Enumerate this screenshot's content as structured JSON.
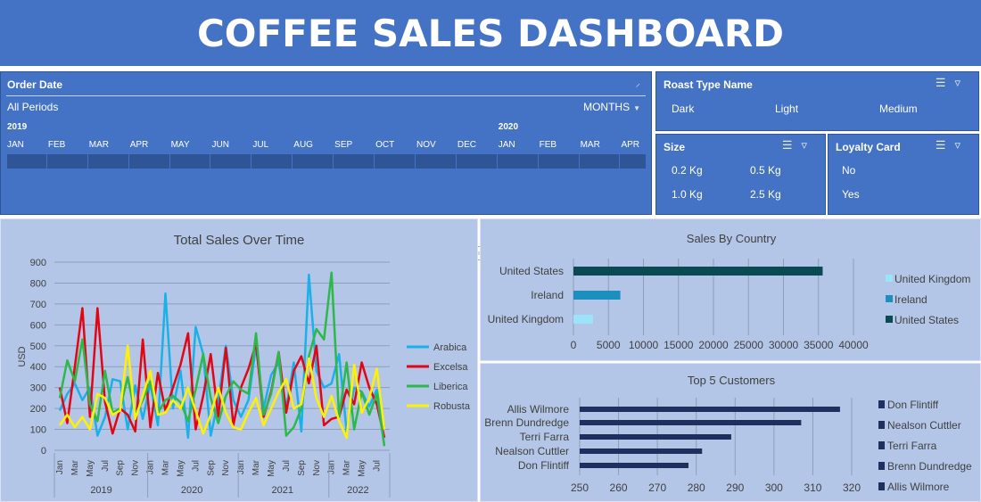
{
  "dashboard": {
    "title": "COFFEE SALES DASHBOARD"
  },
  "colors": {
    "panel": "#4472C4",
    "panel_dark": "#2F5597",
    "chart_bg": "#B4C6E7",
    "arabica": "#1AB0E8",
    "excelsa": "#E30513",
    "liberica": "#2DB84A",
    "robusta": "#FFF200",
    "country_uk": "#9BE3F8",
    "country_ie": "#1D8FBF",
    "country_us": "#0B4A52",
    "customer_bar": "#1F2F5E"
  },
  "timeline": {
    "header": "Order Date",
    "filter_icon": "filter-clear-icon",
    "periods_label": "All Periods",
    "level_label": "MONTHS",
    "years": [
      "2019",
      "2020"
    ],
    "months": [
      "JAN",
      "FEB",
      "MAR",
      "APR",
      "MAY",
      "JUN",
      "JUL",
      "AUG",
      "SEP",
      "OCT",
      "NOV",
      "DEC",
      "JAN",
      "FEB",
      "MAR",
      "APR"
    ]
  },
  "slicers": {
    "roast": {
      "title": "Roast Type Name",
      "items": [
        "Dark",
        "Light",
        "Medium"
      ]
    },
    "size": {
      "title": "Size",
      "items": [
        "0.2 Kg",
        "0.5 Kg",
        "1.0 Kg",
        "2.5 Kg"
      ]
    },
    "loyalty": {
      "title": "Loyalty Card",
      "items": [
        "No",
        "Yes"
      ]
    },
    "icons": [
      "multi-select-icon",
      "clear-filter-icon"
    ]
  },
  "chart_data": [
    {
      "type": "line",
      "title": "Total Sales Over Time",
      "ylabel": "USD",
      "xlabel": "",
      "ylim": [
        0,
        900
      ],
      "yticks": [
        0,
        100,
        200,
        300,
        400,
        500,
        600,
        700,
        800,
        900
      ],
      "month_labels": [
        "Jan",
        "Mar",
        "May",
        "Jul",
        "Sep",
        "Nov"
      ],
      "years": [
        "2019",
        "2020",
        "2021",
        "2022"
      ],
      "months_count": 44,
      "grid": true,
      "legend": "right",
      "series": [
        {
          "name": "Arabica",
          "values": [
            190,
            270,
            320,
            240,
            300,
            70,
            160,
            340,
            330,
            100,
            310,
            150,
            320,
            120,
            750,
            200,
            380,
            60,
            590,
            460,
            70,
            240,
            500,
            240,
            160,
            240,
            500,
            200,
            360,
            420,
            200,
            420,
            90,
            840,
            380,
            300,
            320,
            460,
            90,
            300,
            280,
            210,
            290,
            110
          ]
        },
        {
          "name": "Excelsa",
          "values": [
            300,
            130,
            400,
            680,
            160,
            680,
            230,
            80,
            200,
            170,
            90,
            530,
            110,
            370,
            190,
            300,
            410,
            560,
            100,
            260,
            460,
            160,
            490,
            120,
            300,
            390,
            510,
            160,
            280,
            470,
            180,
            380,
            450,
            320,
            500,
            120,
            150,
            160,
            290,
            220,
            420,
            300,
            220,
            60
          ]
        },
        {
          "name": "Liberica",
          "values": [
            250,
            430,
            330,
            530,
            220,
            140,
            380,
            180,
            200,
            350,
            170,
            240,
            330,
            180,
            240,
            260,
            230,
            140,
            290,
            460,
            250,
            130,
            260,
            330,
            290,
            270,
            560,
            170,
            270,
            470,
            70,
            110,
            200,
            450,
            580,
            530,
            850,
            160,
            420,
            100,
            280,
            170,
            270,
            20
          ]
        },
        {
          "name": "Robusta",
          "values": [
            120,
            170,
            110,
            160,
            100,
            270,
            250,
            170,
            190,
            500,
            150,
            260,
            380,
            170,
            180,
            240,
            200,
            300,
            190,
            80,
            170,
            300,
            180,
            110,
            100,
            180,
            250,
            120,
            200,
            280,
            340,
            200,
            220,
            440,
            250,
            160,
            260,
            140,
            60,
            410,
            180,
            250,
            390,
            100
          ]
        }
      ]
    },
    {
      "type": "bar",
      "orientation": "horizontal",
      "title": "Sales By Country",
      "categories": [
        "United Kingdom",
        "Ireland",
        "United States"
      ],
      "values": [
        2800,
        6700,
        35600
      ],
      "xlim": [
        0,
        40000
      ],
      "xticks": [
        0,
        5000,
        10000,
        15000,
        20000,
        25000,
        30000,
        35000,
        40000
      ],
      "legend": [
        "United Kingdom",
        "Ireland",
        "United States"
      ],
      "legend_position": "right"
    },
    {
      "type": "bar",
      "orientation": "horizontal",
      "title": "Top 5 Customers",
      "categories": [
        "Don Flintiff",
        "Nealson Cuttler",
        "Terri Farra",
        "Brenn Dundredge",
        "Allis Wilmore"
      ],
      "values": [
        278,
        281.5,
        289,
        307,
        317
      ],
      "xlim": [
        250,
        320
      ],
      "xticks": [
        250,
        260,
        270,
        280,
        290,
        300,
        310,
        320
      ],
      "legend": [
        "Don Flintiff",
        "Nealson Cuttler",
        "Terri Farra",
        "Brenn Dundredge",
        "Allis Wilmore"
      ],
      "legend_position": "right"
    }
  ]
}
